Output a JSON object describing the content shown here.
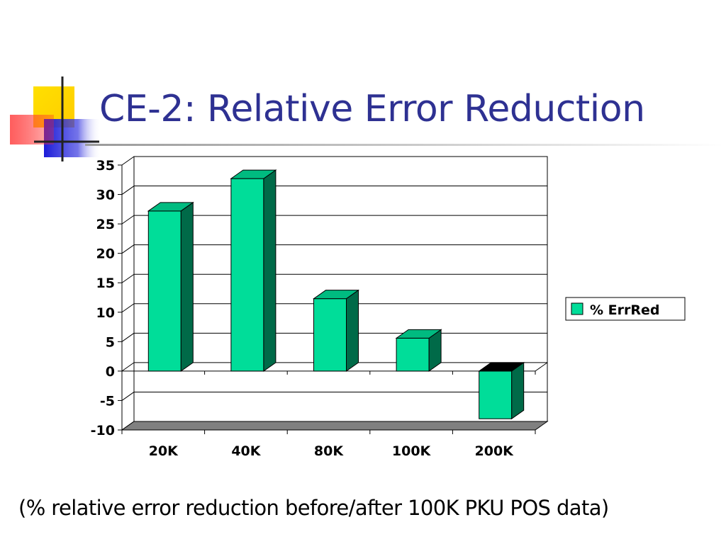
{
  "slide": {
    "title": "CE-2: Relative Error Reduction",
    "caption": "(% relative error reduction before/after 100K PKU POS data)"
  },
  "colors": {
    "title": "#2e3192",
    "bar_front": "#00dd99",
    "bar_top": "#00bb80",
    "bar_side": "#006a48",
    "negative_top": "#000000",
    "floor": "#808080",
    "accent_yellow": "#ffd700",
    "accent_red": "#ff3333",
    "accent_blue": "#2222dd"
  },
  "chart_data": {
    "type": "bar",
    "categories": [
      "20K",
      "40K",
      "80K",
      "100K",
      "200K"
    ],
    "series": [
      {
        "name": "% ErrRed",
        "values": [
          27.2,
          32.7,
          12.3,
          5.6,
          -8.1
        ]
      }
    ],
    "ylim": [
      -10,
      35
    ],
    "yticks": [
      "35",
      "30",
      "25",
      "20",
      "15",
      "10",
      "5",
      "0",
      "-5",
      "-10"
    ],
    "grid": true,
    "legend": "right",
    "style": "3d-column"
  }
}
